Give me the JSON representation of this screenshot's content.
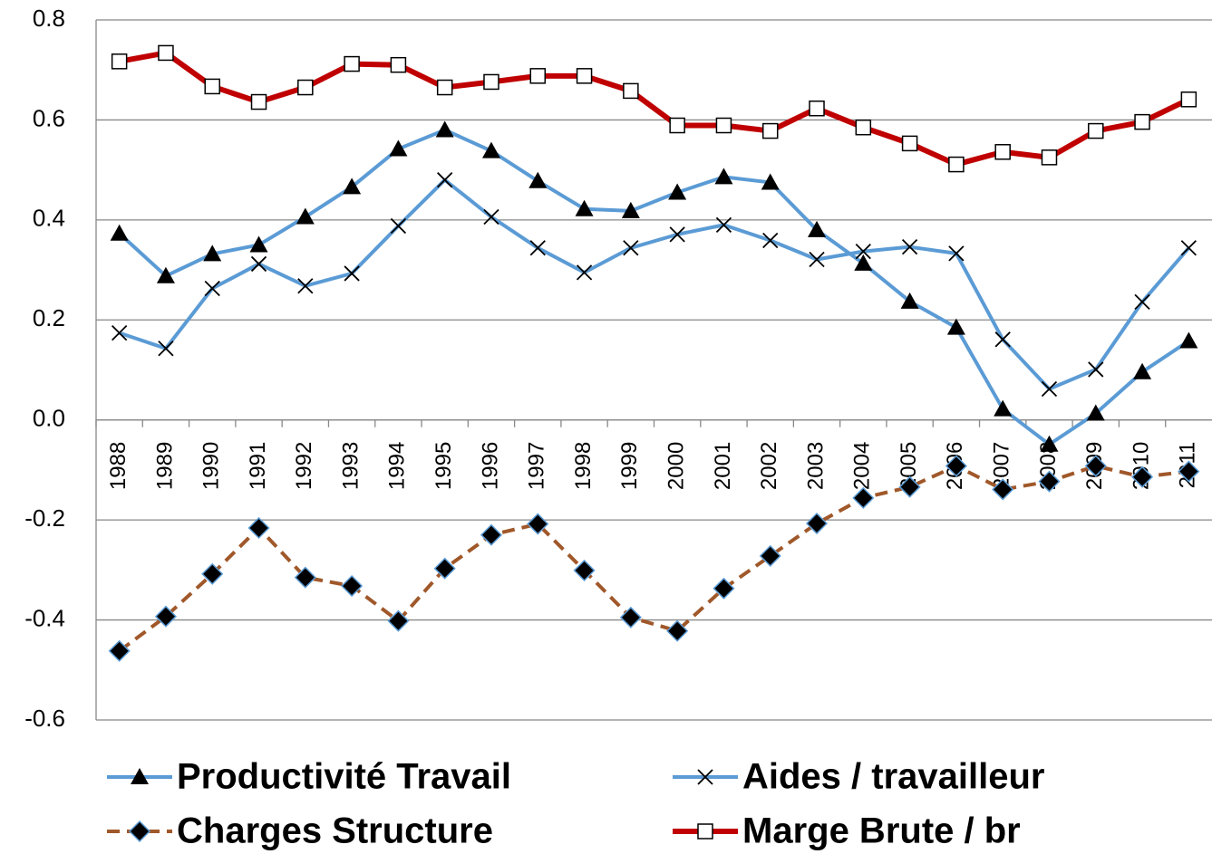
{
  "chart_data": {
    "type": "line",
    "categories": [
      "1988",
      "1989",
      "1990",
      "1991",
      "1992",
      "1993",
      "1994",
      "1995",
      "1996",
      "1997",
      "1998",
      "1999",
      "2000",
      "2001",
      "2002",
      "2003",
      "2004",
      "2005",
      "2006",
      "2007",
      "2008",
      "2009",
      "2010",
      "2011"
    ],
    "ylim": [
      -0.6,
      0.8
    ],
    "yticks": [
      -0.6,
      -0.4,
      -0.2,
      {
        "value": 0,
        "label": "0.0"
      },
      0.2,
      0.4,
      0.6,
      0.8
    ],
    "grid": true,
    "legend": "bottom",
    "series": [
      {
        "name": "Productivité Travail",
        "color": "#5b9bd5",
        "marker": "triangle",
        "dash": "solid",
        "values": [
          0.373,
          0.288,
          0.332,
          0.35,
          0.406,
          0.466,
          0.542,
          0.58,
          0.538,
          0.478,
          0.422,
          0.418,
          0.455,
          0.486,
          0.475,
          0.38,
          0.313,
          0.237,
          0.185,
          0.022,
          -0.049,
          0.013,
          0.096,
          0.158
        ]
      },
      {
        "name": "Aides / travailleur",
        "color": "#5b9bd5",
        "marker": "x",
        "dash": "solid",
        "values": [
          0.174,
          0.143,
          0.263,
          0.312,
          0.268,
          0.293,
          0.388,
          0.48,
          0.406,
          0.344,
          0.295,
          0.344,
          0.371,
          0.39,
          0.359,
          0.321,
          0.337,
          0.346,
          0.333,
          0.161,
          0.062,
          0.101,
          0.236,
          0.344
        ]
      },
      {
        "name": "Charges Structure",
        "color": "#a0582a",
        "marker": "diamond",
        "dash": "dashed",
        "values": [
          -0.462,
          -0.393,
          -0.308,
          -0.216,
          -0.315,
          -0.332,
          -0.402,
          -0.297,
          -0.23,
          -0.208,
          -0.301,
          -0.395,
          -0.422,
          -0.337,
          -0.272,
          -0.207,
          -0.156,
          -0.134,
          -0.092,
          -0.139,
          -0.123,
          -0.092,
          -0.114,
          -0.103
        ]
      },
      {
        "name": "Marge Brute / br",
        "color": "#c00000",
        "marker": "square",
        "dash": "solid",
        "values": [
          0.717,
          0.734,
          0.667,
          0.636,
          0.665,
          0.712,
          0.71,
          0.665,
          0.676,
          0.688,
          0.688,
          0.658,
          0.589,
          0.589,
          0.578,
          0.623,
          0.585,
          0.553,
          0.511,
          0.536,
          0.525,
          0.578,
          0.596,
          0.641
        ]
      }
    ]
  }
}
